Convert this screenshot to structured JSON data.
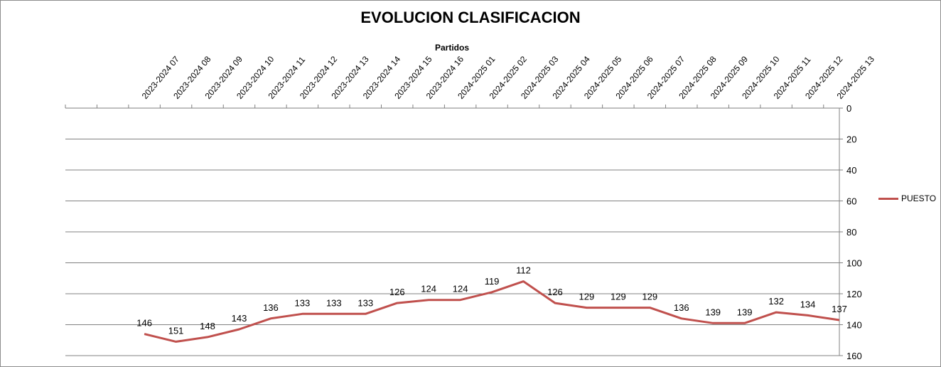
{
  "chart_data": {
    "type": "line",
    "title": "EVOLUCION CLASIFICACION",
    "xlabel": "Partidos",
    "ylabel": "",
    "ylim": [
      0,
      160
    ],
    "y_reversed": true,
    "y_axis_side": "right",
    "x_axis_side": "top",
    "yticks": [
      0,
      20,
      40,
      60,
      80,
      100,
      120,
      140,
      160
    ],
    "grid": true,
    "legend": "right",
    "categories": [
      "",
      "",
      "2023-2024 07",
      "2023-2024 08",
      "2023-2024 09",
      "2023-2024 10",
      "2023-2024 11",
      "2023-2024 12",
      "2023-2024 13",
      "2023-2024 14",
      "2023-2024 15",
      "2023-2024 16",
      "2024-2025 01",
      "2024-2025 02",
      "2024-2025 03",
      "2024-2025 04",
      "2024-2025 05",
      "2024-2025 06",
      "2024-2025 07",
      "2024-2025 08",
      "2024-2025 09",
      "2024-2025 10",
      "2024-2025 11",
      "2024-2025 12",
      "2024-2025 13"
    ],
    "series": [
      {
        "name": "PUESTO",
        "color": "#C0504D",
        "values": [
          null,
          null,
          146,
          151,
          148,
          143,
          136,
          133,
          133,
          133,
          126,
          124,
          124,
          119,
          112,
          126,
          129,
          129,
          129,
          136,
          139,
          139,
          132,
          134,
          137
        ]
      }
    ]
  }
}
